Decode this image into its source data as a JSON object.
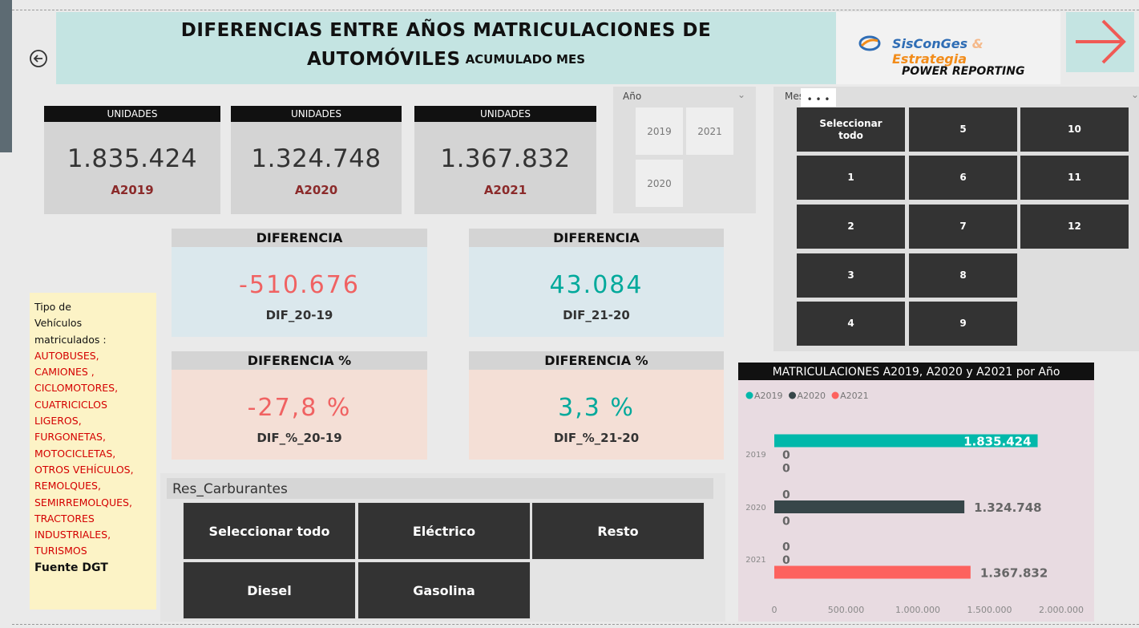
{
  "header": {
    "title_line1": "DIFERENCIAS ENTRE AÑOS  MATRICULACIONES DE",
    "title_line2": "AUTOMÓVILES",
    "title_suffix": "ACUMULADO MES",
    "logo_name": "SisConGes",
    "logo_amp": "&",
    "logo_name2": "Estrategia",
    "logo_tagline": "POWER REPORTING"
  },
  "cards": [
    {
      "header": "UNIDADES",
      "value": "1.835.424",
      "label": "A2019"
    },
    {
      "header": "UNIDADES",
      "value": "1.324.748",
      "label": "A2020"
    },
    {
      "header": "UNIDADES",
      "value": "1.367.832",
      "label": "A2021"
    }
  ],
  "year_slicer": {
    "title": "Año",
    "options": [
      "2019",
      "2021",
      "2020"
    ]
  },
  "month_slicer": {
    "title": "Mes",
    "options": [
      "Seleccionar todo",
      "1",
      "2",
      "3",
      "4",
      "5",
      "6",
      "7",
      "8",
      "9",
      "10",
      "11",
      "12"
    ]
  },
  "differences": [
    {
      "header": "DIFERENCIA",
      "value": "-510.676",
      "label": "DIF_20-19"
    },
    {
      "header": "DIFERENCIA",
      "value": "43.084",
      "label": "DIF_21-20"
    },
    {
      "header": "DIFERENCIA %",
      "value": "-27,8 %",
      "label": "DIF_%_20-19"
    },
    {
      "header": "DIFERENCIA %",
      "value": "3,3 %",
      "label": "DIF_%_21-20"
    }
  ],
  "vehicle_types": {
    "heading": "Tipo de Vehículos matriculados :",
    "items": [
      "AUTOBUSES,",
      "CAMIONES ,",
      "CICLOMOTORES,",
      "CUATRICICLOS LIGEROS,",
      "FURGONETAS,",
      "MOTOCICLETAS,",
      "OTROS VEHÍCULOS,",
      "REMOLQUES,",
      "SEMIRREMOLQUES,",
      "TRACTORES INDUSTRIALES,",
      "TURISMOS"
    ],
    "source": "Fuente DGT"
  },
  "fuel_slicer": {
    "title": "Res_Carburantes",
    "options": [
      "Seleccionar todo",
      "Eléctrico",
      "Resto",
      "Diesel",
      "Gasolina"
    ]
  },
  "chart_data": {
    "type": "bar",
    "orientation": "horizontal",
    "title": "MATRICULACIONES A2019, A2020 y A2021 por Año",
    "categories": [
      "2019",
      "2020",
      "2021"
    ],
    "series": [
      {
        "name": "A2019",
        "color": "#01b8aa",
        "values": [
          1835424,
          0,
          0
        ],
        "value_labels": [
          "1.835.424",
          "0",
          "0"
        ]
      },
      {
        "name": "A2020",
        "color": "#374649",
        "values": [
          0,
          1324748,
          0
        ],
        "value_labels": [
          "0",
          "1.324.748",
          "0"
        ]
      },
      {
        "name": "A2021",
        "color": "#fd625e",
        "values": [
          0,
          0,
          1367832
        ],
        "value_labels": [
          "0",
          "0",
          "1.367.832"
        ]
      }
    ],
    "xlim": [
      0,
      2000000
    ],
    "xticks": [
      0,
      {
        "value": 500000,
        "label": "500.000"
      },
      {
        "value": 1000000,
        "label": "1.000.000"
      },
      {
        "value": 1500000,
        "label": "1.500.000"
      },
      {
        "value": 2000000,
        "label": "2.000.000"
      }
    ],
    "legend": "top-left",
    "grid": false
  }
}
